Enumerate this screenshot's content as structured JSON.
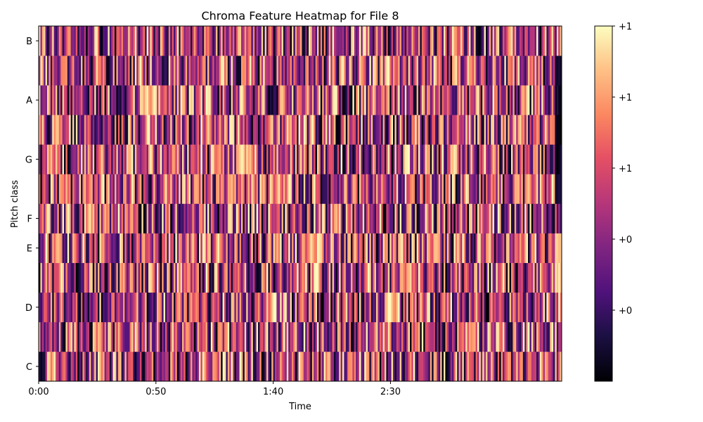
{
  "chart_data": {
    "type": "heatmap",
    "title": "Chroma Feature Heatmap for File 8",
    "xlabel": "Time",
    "ylabel": "Pitch class",
    "x_range_seconds": [
      0,
      223
    ],
    "x_ticks": [
      {
        "value": 0,
        "label": "0:00"
      },
      {
        "value": 50,
        "label": "0:50"
      },
      {
        "value": 100,
        "label": "1:40"
      },
      {
        "value": 150,
        "label": "2:30"
      }
    ],
    "y_ticks": [
      {
        "value": 0,
        "label": "C"
      },
      {
        "value": 2,
        "label": "D"
      },
      {
        "value": 4,
        "label": "E"
      },
      {
        "value": 5,
        "label": "F"
      },
      {
        "value": 7,
        "label": "G"
      },
      {
        "value": 9,
        "label": "A"
      },
      {
        "value": 11,
        "label": "B"
      }
    ],
    "rows": 12,
    "columns": 310,
    "value_range": [
      0,
      1
    ],
    "colormap": "magma",
    "colorbar_ticks": [
      {
        "value": 0.2,
        "label": "+0"
      },
      {
        "value": 0.4,
        "label": "+0"
      },
      {
        "value": 0.6,
        "label": "+1"
      },
      {
        "value": 0.8,
        "label": "+1"
      },
      {
        "value": 1.0,
        "label": "+1"
      }
    ],
    "grid": false
  }
}
